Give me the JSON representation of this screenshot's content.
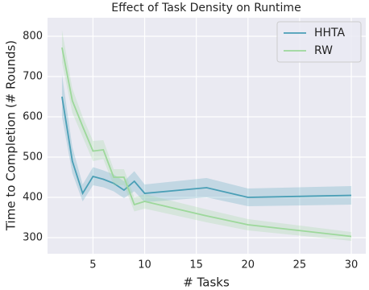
{
  "chart_data": {
    "type": "line",
    "title": "Effect of Task Density on Runtime",
    "x_label": "# Tasks",
    "y_label": "Time to Completion (# Rounds)",
    "x": [
      2,
      3,
      4,
      5,
      6,
      7,
      8,
      9,
      10,
      16,
      20,
      30
    ],
    "series": [
      {
        "name": "HHTA",
        "color": "#4a9fb6",
        "values": [
          650,
          490,
          410,
          452,
          445,
          435,
          418,
          440,
          410,
          424,
          400,
          405
        ],
        "lower": [
          600,
          460,
          390,
          430,
          425,
          415,
          398,
          415,
          388,
          400,
          378,
          382
        ],
        "upper": [
          705,
          525,
          432,
          475,
          467,
          457,
          440,
          465,
          432,
          448,
          422,
          428
        ]
      },
      {
        "name": "RW",
        "color": "#9dd89b",
        "values": [
          772,
          640,
          576,
          515,
          518,
          450,
          450,
          382,
          390,
          354,
          332,
          303
        ],
        "lower": [
          735,
          610,
          550,
          490,
          495,
          430,
          430,
          365,
          372,
          338,
          318,
          292
        ],
        "upper": [
          815,
          670,
          600,
          540,
          542,
          470,
          470,
          400,
          408,
          370,
          346,
          314
        ]
      }
    ],
    "xlim": [
      0.6,
      31.4
    ],
    "ylim": [
      260,
      846
    ],
    "xticks": [
      5,
      10,
      15,
      20,
      25,
      30
    ],
    "yticks": [
      300,
      400,
      500,
      600,
      700,
      800
    ],
    "grid": true,
    "legend": "upper right"
  }
}
